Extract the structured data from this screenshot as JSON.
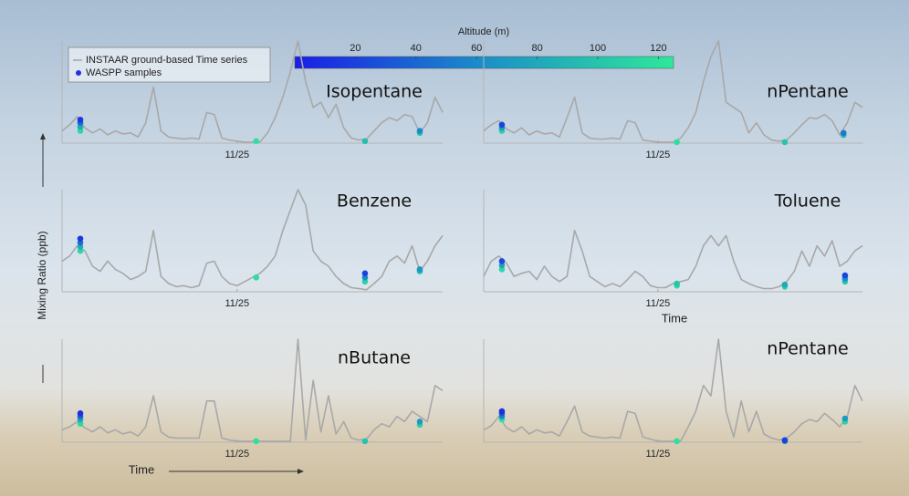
{
  "chart_data": [
    {
      "type": "line",
      "title": "Isopentane",
      "x": [
        0,
        2,
        4,
        6,
        8,
        10,
        12,
        14,
        16,
        18,
        20,
        22,
        24,
        26,
        28,
        30,
        32,
        34,
        36,
        38,
        40,
        42,
        44,
        46,
        48,
        50,
        52,
        54,
        56,
        58,
        60,
        62,
        64,
        66,
        68,
        70,
        72,
        74,
        76,
        78,
        80,
        82,
        84,
        86,
        88,
        90,
        92,
        94,
        96,
        98,
        100
      ],
      "series": [
        {
          "name": "INSTAAR ground-based Time series",
          "color": "#a8a8a8",
          "values": [
            12,
            18,
            26,
            15,
            10,
            14,
            8,
            12,
            9,
            10,
            6,
            20,
            55,
            12,
            6,
            5,
            4,
            5,
            4,
            30,
            28,
            5,
            3,
            2,
            1,
            1,
            1,
            10,
            25,
            45,
            70,
            100,
            60,
            35,
            40,
            25,
            38,
            15,
            5,
            3,
            4,
            12,
            20,
            25,
            22,
            28,
            26,
            10,
            20,
            45,
            30
          ]
        }
      ],
      "samples": {
        "name": "WASPP samples",
        "color": "#2233dd",
        "x": [
          4.8,
          4.8,
          4.8,
          4.8,
          51,
          79.6,
          94,
          94
        ],
        "values": [
          12,
          16,
          20,
          23,
          2,
          2,
          10,
          12
        ],
        "altitude": [
          115,
          80,
          40,
          15,
          120,
          95,
          100,
          60
        ]
      },
      "xlim": [
        0,
        100
      ],
      "ylim": [
        0,
        100
      ],
      "xticks": [
        {
          "value": 46,
          "label": "11/25"
        }
      ]
    },
    {
      "type": "line",
      "title": "nPentane",
      "x": [
        0,
        2,
        4,
        6,
        8,
        10,
        12,
        14,
        16,
        18,
        20,
        22,
        24,
        26,
        28,
        30,
        32,
        34,
        36,
        38,
        40,
        42,
        44,
        46,
        48,
        50,
        52,
        54,
        56,
        58,
        60,
        62,
        64,
        66,
        68,
        70,
        72,
        74,
        76,
        78,
        80,
        82,
        84,
        86,
        88,
        90,
        92,
        94,
        96,
        98,
        100
      ],
      "series": [
        {
          "color": "#a8a8a8",
          "values": [
            12,
            18,
            22,
            14,
            10,
            15,
            8,
            12,
            9,
            10,
            6,
            25,
            45,
            10,
            5,
            4,
            4,
            5,
            4,
            22,
            20,
            3,
            2,
            1,
            1,
            1,
            5,
            15,
            30,
            60,
            85,
            100,
            40,
            35,
            30,
            10,
            20,
            8,
            3,
            2,
            3,
            10,
            18,
            25,
            24,
            28,
            22,
            8,
            20,
            40,
            35
          ]
        }
      ],
      "samples": {
        "x": [
          4.8,
          4.8,
          4.8,
          51,
          79.5,
          95,
          95
        ],
        "values": [
          12,
          15,
          18,
          1,
          1,
          8,
          10
        ],
        "altitude": [
          110,
          70,
          20,
          120,
          100,
          90,
          50
        ]
      },
      "xlim": [
        0,
        100
      ],
      "ylim": [
        0,
        100
      ],
      "xticks": [
        {
          "value": 46,
          "label": "11/25"
        }
      ]
    },
    {
      "type": "line",
      "title": "Benzene",
      "x": [
        0,
        2,
        4,
        6,
        8,
        10,
        12,
        14,
        16,
        18,
        20,
        22,
        24,
        26,
        28,
        30,
        32,
        34,
        36,
        38,
        40,
        42,
        44,
        46,
        48,
        50,
        52,
        54,
        56,
        58,
        60,
        62,
        64,
        66,
        68,
        70,
        72,
        74,
        76,
        78,
        80,
        82,
        84,
        86,
        88,
        90,
        92,
        94,
        96,
        98,
        100
      ],
      "series": [
        {
          "color": "#a8a8a8",
          "values": [
            30,
            35,
            45,
            40,
            25,
            20,
            30,
            22,
            18,
            12,
            15,
            20,
            60,
            15,
            8,
            5,
            6,
            4,
            6,
            28,
            30,
            15,
            8,
            6,
            10,
            14,
            18,
            25,
            35,
            60,
            80,
            100,
            85,
            40,
            30,
            25,
            15,
            8,
            4,
            3,
            2,
            8,
            15,
            30,
            35,
            28,
            45,
            20,
            30,
            45,
            55
          ]
        }
      ],
      "samples": {
        "x": [
          4.8,
          4.8,
          4.8,
          4.8,
          51,
          79.6,
          79.6,
          79.6,
          94,
          94
        ],
        "values": [
          40,
          44,
          48,
          52,
          14,
          10,
          14,
          18,
          20,
          22
        ],
        "altitude": [
          115,
          85,
          45,
          15,
          118,
          110,
          60,
          20,
          95,
          70
        ]
      },
      "xlim": [
        0,
        100
      ],
      "ylim": [
        0,
        100
      ],
      "xticks": [
        {
          "value": 46,
          "label": "11/25"
        }
      ]
    },
    {
      "type": "line",
      "title": "Toluene",
      "xlabel": "Time",
      "x": [
        0,
        2,
        4,
        6,
        8,
        10,
        12,
        14,
        16,
        18,
        20,
        22,
        24,
        26,
        28,
        30,
        32,
        34,
        36,
        38,
        40,
        42,
        44,
        46,
        48,
        50,
        52,
        54,
        56,
        58,
        60,
        62,
        64,
        66,
        68,
        70,
        72,
        74,
        76,
        78,
        80,
        82,
        84,
        86,
        88,
        90,
        92,
        94,
        96,
        98,
        100
      ],
      "series": [
        {
          "color": "#a8a8a8",
          "values": [
            15,
            30,
            35,
            28,
            15,
            18,
            20,
            12,
            25,
            15,
            10,
            15,
            60,
            40,
            15,
            10,
            5,
            8,
            5,
            12,
            20,
            15,
            6,
            4,
            4,
            8,
            10,
            12,
            25,
            45,
            55,
            45,
            55,
            30,
            12,
            8,
            5,
            3,
            3,
            5,
            10,
            20,
            40,
            25,
            45,
            35,
            50,
            25,
            30,
            40,
            45
          ]
        }
      ],
      "samples": {
        "x": [
          4.8,
          4.8,
          4.8,
          51,
          51,
          79.5,
          79.5,
          95.4,
          95.4,
          95.4
        ],
        "values": [
          22,
          26,
          30,
          6,
          8,
          5,
          7,
          10,
          13,
          16
        ],
        "altitude": [
          115,
          75,
          25,
          118,
          100,
          110,
          80,
          100,
          60,
          20
        ]
      },
      "xlim": [
        0,
        100
      ],
      "ylim": [
        0,
        100
      ],
      "xticks": [
        {
          "value": 46,
          "label": "11/25"
        }
      ]
    },
    {
      "type": "line",
      "title": "nButane",
      "x": [
        0,
        2,
        4,
        6,
        8,
        10,
        12,
        14,
        16,
        18,
        20,
        22,
        24,
        26,
        28,
        30,
        32,
        34,
        36,
        38,
        40,
        42,
        44,
        46,
        48,
        50,
        52,
        54,
        56,
        58,
        60,
        62,
        64,
        66,
        68,
        70,
        72,
        74,
        76,
        78,
        80,
        82,
        84,
        86,
        88,
        90,
        92,
        94,
        96,
        98,
        100
      ],
      "series": [
        {
          "color": "#a8a8a8",
          "values": [
            12,
            15,
            20,
            14,
            10,
            15,
            9,
            12,
            8,
            10,
            6,
            15,
            45,
            10,
            5,
            4,
            4,
            4,
            4,
            40,
            40,
            4,
            2,
            1,
            1,
            1,
            1,
            1,
            1,
            1,
            1,
            100,
            2,
            60,
            10,
            45,
            8,
            20,
            4,
            2,
            3,
            12,
            18,
            15,
            25,
            20,
            30,
            25,
            20,
            55,
            50
          ]
        }
      ],
      "samples": {
        "x": [
          4.8,
          4.8,
          4.8,
          4.8,
          51,
          79.6,
          94,
          94
        ],
        "values": [
          18,
          22,
          25,
          28,
          1,
          1,
          17,
          20
        ],
        "altitude": [
          115,
          80,
          40,
          10,
          120,
          100,
          105,
          70
        ]
      },
      "xlim": [
        0,
        100
      ],
      "ylim": [
        0,
        100
      ],
      "xticks": [
        {
          "value": 46,
          "label": "11/25"
        }
      ]
    },
    {
      "type": "line",
      "title": "nPentane",
      "x": [
        0,
        2,
        4,
        6,
        8,
        10,
        12,
        14,
        16,
        18,
        20,
        22,
        24,
        26,
        28,
        30,
        32,
        34,
        36,
        38,
        40,
        42,
        44,
        46,
        48,
        50,
        52,
        54,
        56,
        58,
        60,
        62,
        64,
        66,
        68,
        70,
        72,
        74,
        76,
        78,
        80,
        82,
        84,
        86,
        88,
        90,
        92,
        94,
        96,
        98,
        100
      ],
      "series": [
        {
          "color": "#a8a8a8",
          "values": [
            12,
            16,
            25,
            14,
            10,
            15,
            8,
            12,
            9,
            10,
            6,
            20,
            35,
            10,
            6,
            5,
            4,
            5,
            4,
            30,
            28,
            5,
            3,
            1,
            1,
            1,
            1,
            15,
            30,
            55,
            45,
            100,
            30,
            5,
            40,
            10,
            30,
            8,
            4,
            2,
            4,
            10,
            18,
            22,
            20,
            28,
            22,
            15,
            25,
            55,
            40
          ]
        }
      ],
      "samples": {
        "x": [
          4.8,
          4.8,
          4.8,
          4.8,
          51,
          79.5,
          79.5,
          95.4,
          95.4
        ],
        "values": [
          22,
          25,
          28,
          30,
          1,
          1,
          2,
          20,
          23
        ],
        "altitude": [
          120,
          60,
          30,
          10,
          120,
          60,
          20,
          110,
          70
        ]
      },
      "xlim": [
        0,
        100
      ],
      "ylim": [
        0,
        100
      ],
      "xticks": [
        {
          "value": 46,
          "label": "11/25"
        }
      ]
    }
  ],
  "colorbar": {
    "label": "Altitude (m)",
    "lim": [
      0,
      125
    ],
    "ticks": [
      20,
      40,
      60,
      80,
      100,
      120
    ],
    "colors": [
      "#1a1ee6",
      "#1b8fc8",
      "#2ee89a"
    ]
  },
  "ylabel": "Mixing Ratio (ppb)",
  "xlabel": "Time"
}
